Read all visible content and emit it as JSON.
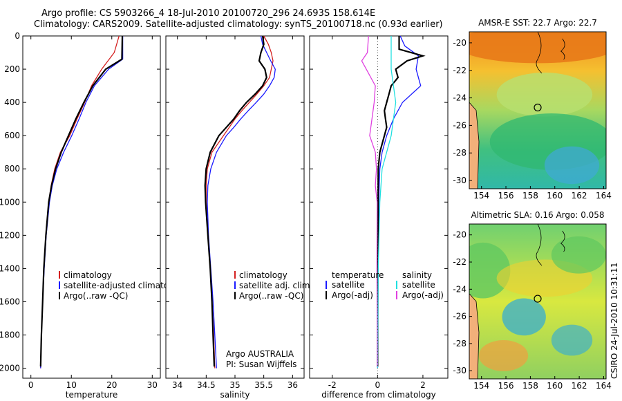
{
  "title": {
    "line1": "Argo profile: CS 5903266_4 18-Jul-2010 20100720_296 24.693S 158.614E",
    "line2": "Climatology: CARS2009. Satellite-adjusted climatology: synTS_20100718.nc (0.93d earlier)"
  },
  "colors": {
    "clim": "#d42020",
    "sat": "#1a1aff",
    "argo": "#000000",
    "cyan": "#20e0e0",
    "magenta": "#e040e0"
  },
  "chart_data": [
    {
      "id": "temperature",
      "type": "line",
      "xlabel": "temperature",
      "xlim": [
        -2,
        32
      ],
      "ylim": [
        2060,
        0
      ],
      "xticks": [
        "0",
        "10",
        "20",
        "30"
      ],
      "xtick_values": [
        0,
        10,
        20,
        30
      ],
      "yticks": [
        "0",
        "200",
        "400",
        "600",
        "800",
        "1000",
        "1200",
        "1400",
        "1600",
        "1800",
        "2000"
      ],
      "ytick_values": [
        0,
        200,
        400,
        600,
        800,
        1000,
        1200,
        1400,
        1600,
        1800,
        2000
      ],
      "series": [
        {
          "name": "climatology",
          "color": "clim",
          "depth": [
            0,
            100,
            200,
            300,
            400,
            500,
            600,
            700,
            800,
            900,
            1000,
            1200,
            1400,
            1600,
            1800,
            2000
          ],
          "values": [
            21.8,
            20.6,
            17.5,
            15.0,
            13.3,
            11.4,
            9.6,
            7.3,
            5.9,
            5.0,
            4.4,
            3.7,
            3.2,
            2.9,
            2.6,
            2.4
          ]
        },
        {
          "name": "satellite-adjusted climatology",
          "color": "sat",
          "depth": [
            0,
            140,
            200,
            300,
            400,
            500,
            600,
            700,
            800,
            900,
            1000,
            1200,
            1400,
            1600,
            1800,
            2000
          ],
          "values": [
            22.7,
            22.7,
            19.2,
            15.7,
            13.6,
            11.9,
            10.1,
            8.1,
            6.4,
            5.3,
            4.6,
            3.8,
            3.3,
            2.9,
            2.6,
            2.4
          ]
        },
        {
          "name": "Argo(..raw -QC)",
          "color": "argo",
          "depth": [
            0,
            140,
            200,
            300,
            400,
            500,
            600,
            700,
            800,
            900,
            1000,
            1200,
            1400,
            1600,
            1800,
            1990
          ],
          "values": [
            22.6,
            22.5,
            18.5,
            15.3,
            13.1,
            11.1,
            9.3,
            7.5,
            6.1,
            5.1,
            4.4,
            3.7,
            3.2,
            2.9,
            2.6,
            2.4
          ]
        }
      ],
      "legend": [
        "climatology",
        "satellite-adjusted climatology",
        "Argo(..raw -QC)"
      ]
    },
    {
      "id": "salinity",
      "type": "line",
      "xlabel": "salinity",
      "xlim": [
        33.8,
        36.2
      ],
      "ylim": [
        2060,
        0
      ],
      "xticks": [
        "34",
        "34.5",
        "35",
        "35.5",
        "36"
      ],
      "xtick_values": [
        34,
        34.5,
        35,
        35.5,
        36
      ],
      "series": [
        {
          "name": "climatology",
          "color": "clim",
          "depth": [
            0,
            50,
            100,
            150,
            200,
            250,
            300,
            350,
            400,
            450,
            500,
            550,
            600,
            700,
            800,
            900,
            1000,
            1200,
            1400,
            1600,
            1800,
            2000
          ],
          "values": [
            35.5,
            35.58,
            35.63,
            35.66,
            35.63,
            35.6,
            35.5,
            35.38,
            35.25,
            35.12,
            35.0,
            34.9,
            34.8,
            34.6,
            34.52,
            34.5,
            34.5,
            34.53,
            34.57,
            34.6,
            34.63,
            34.65
          ]
        },
        {
          "name": "satellite adj. clim.",
          "color": "sat",
          "depth": [
            0,
            50,
            100,
            150,
            200,
            250,
            300,
            350,
            400,
            450,
            500,
            550,
            600,
            700,
            800,
            900,
            1000,
            1200,
            1400,
            1600,
            1800,
            2000
          ],
          "values": [
            35.45,
            35.48,
            35.55,
            35.62,
            35.7,
            35.68,
            35.6,
            35.5,
            35.37,
            35.23,
            35.1,
            34.98,
            34.85,
            34.68,
            34.58,
            34.53,
            34.52,
            34.54,
            34.58,
            34.62,
            34.65,
            34.68
          ]
        },
        {
          "name": "Argo(..raw -QC)",
          "color": "argo",
          "depth": [
            0,
            50,
            100,
            150,
            200,
            250,
            300,
            350,
            400,
            450,
            500,
            550,
            600,
            700,
            800,
            900,
            1000,
            1200,
            1400,
            1600,
            1800,
            1990
          ],
          "values": [
            35.48,
            35.5,
            35.45,
            35.42,
            35.52,
            35.55,
            35.48,
            35.35,
            35.2,
            35.08,
            34.98,
            34.85,
            34.72,
            34.57,
            34.5,
            34.48,
            34.49,
            34.53,
            34.57,
            34.6,
            34.62,
            34.64
          ]
        }
      ],
      "legend": [
        "climatology",
        "satellite adj. clim.",
        "Argo(..raw -QC)"
      ],
      "annotation": [
        "Argo AUSTRALIA",
        "PI: Susan Wijffels"
      ]
    },
    {
      "id": "difference",
      "type": "line",
      "xlabel": "difference from climatology",
      "xlim": [
        -3,
        3.1
      ],
      "ylim": [
        2060,
        0
      ],
      "xticks": [
        "-2",
        "0",
        "2"
      ],
      "xtick_values": [
        -2,
        0,
        2
      ],
      "series": [
        {
          "name": "temperature satellite",
          "color": "sat",
          "depth": [
            0,
            60,
            120,
            200,
            300,
            400,
            500,
            600,
            700,
            800,
            1000,
            1400,
            2000
          ],
          "values": [
            1.0,
            1.2,
            1.8,
            1.7,
            1.9,
            1.1,
            0.7,
            0.4,
            0.2,
            0.1,
            0.05,
            0.02,
            0.0
          ]
        },
        {
          "name": "temperature Argo(-adj)",
          "color": "argo",
          "depth": [
            0,
            80,
            120,
            150,
            200,
            250,
            300,
            350,
            400,
            450,
            500,
            550,
            600,
            650,
            700,
            800,
            1000,
            1400,
            1990
          ],
          "values": [
            0.95,
            0.95,
            2.0,
            1.3,
            0.8,
            0.9,
            0.6,
            0.5,
            0.4,
            0.3,
            0.35,
            0.4,
            0.3,
            0.2,
            0.1,
            0.03,
            0.02,
            0.01,
            0.0
          ]
        },
        {
          "name": "salinity satellite",
          "color": "cyan",
          "depth": [
            0,
            100,
            200,
            300,
            400,
            500,
            600,
            700,
            800,
            1000,
            1400,
            2000
          ],
          "values": [
            0.6,
            0.6,
            0.6,
            0.7,
            0.8,
            0.7,
            0.6,
            0.4,
            0.2,
            0.1,
            0.03,
            0.0
          ]
        },
        {
          "name": "salinity Argo(-adj)",
          "color": "magenta",
          "depth": [
            0,
            100,
            150,
            200,
            300,
            400,
            500,
            600,
            700,
            800,
            900,
            1000,
            1400,
            1990
          ],
          "values": [
            -0.4,
            -0.45,
            -0.7,
            -0.5,
            -0.1,
            -0.15,
            -0.25,
            -0.35,
            -0.1,
            -0.05,
            -0.1,
            -0.02,
            -0.03,
            -0.01
          ]
        }
      ],
      "legend": {
        "temperature_header": "temperature",
        "salinity_header": "salinity",
        "temp_sat": "satellite",
        "temp_argo": "Argo(-adj)",
        "sal_sat": "satellite",
        "sal_argo": "Argo(-adj)"
      }
    },
    {
      "id": "sst-map",
      "type": "heatmap",
      "title": "AMSR-E SST: 22.7 Argo: 22.7",
      "xlim": [
        153,
        164.2
      ],
      "ylim": [
        -30.6,
        -19.2
      ],
      "xticks": [
        "154",
        "156",
        "158",
        "160",
        "162",
        "164"
      ],
      "xtick_values": [
        154,
        156,
        158,
        160,
        162,
        164
      ],
      "yticks": [
        "-20",
        "-22",
        "-24",
        "-26",
        "-28",
        "-30"
      ],
      "ytick_values": [
        -20,
        -22,
        -24,
        -26,
        -28,
        -30
      ],
      "marker": {
        "lon": 158.6,
        "lat": -24.7
      }
    },
    {
      "id": "sla-map",
      "type": "heatmap",
      "title": "Altimetric SLA: 0.16 Argo: 0.058",
      "xlim": [
        153,
        164.2
      ],
      "ylim": [
        -30.6,
        -19.2
      ],
      "xticks": [
        "154",
        "156",
        "158",
        "160",
        "162",
        "164"
      ],
      "xtick_values": [
        154,
        156,
        158,
        160,
        162,
        164
      ],
      "yticks": [
        "-20",
        "-22",
        "-24",
        "-26",
        "-28",
        "-30"
      ],
      "ytick_values": [
        -20,
        -22,
        -24,
        -26,
        -28,
        -30
      ],
      "marker": {
        "lon": 158.6,
        "lat": -24.7
      }
    }
  ],
  "footer": "CSIRO 24-Jul-2010 10:31:11"
}
